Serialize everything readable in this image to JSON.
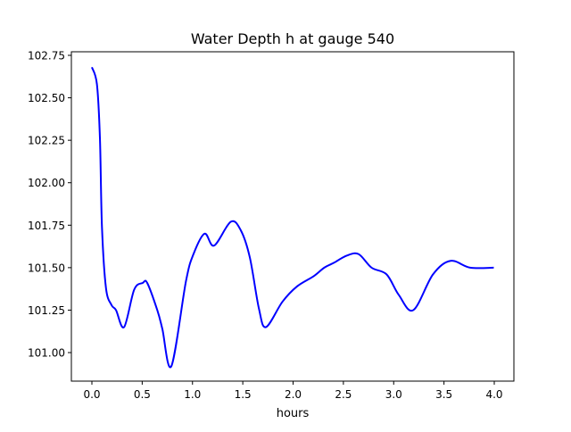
{
  "chart_data": {
    "type": "line",
    "title": "Water Depth h at gauge 540",
    "xlabel": "hours",
    "ylabel": "",
    "xlim": [
      -0.204,
      4.195
    ],
    "ylim": [
      100.832,
      102.771
    ],
    "xticks": [
      0.0,
      0.5,
      1.0,
      1.5,
      2.0,
      2.5,
      3.0,
      3.5,
      4.0
    ],
    "xtick_labels": [
      "0.0",
      "0.5",
      "1.0",
      "1.5",
      "2.0",
      "2.5",
      "3.0",
      "3.5",
      "4.0"
    ],
    "yticks": [
      101.0,
      101.25,
      101.5,
      101.75,
      102.0,
      102.25,
      102.5,
      102.75
    ],
    "ytick_labels": [
      "101.00",
      "101.25",
      "101.50",
      "101.75",
      "102.00",
      "102.25",
      "102.50",
      "102.75"
    ],
    "grid": false,
    "series": [
      {
        "name": "h",
        "color": "#0000ff",
        "x": [
          0,
          0.05,
          0.08,
          0.1,
          0.14,
          0.195,
          0.24,
          0.32,
          0.42,
          0.505,
          0.55,
          0.65,
          0.7,
          0.79,
          0.935,
          1.01,
          1.12,
          1.215,
          1.38,
          1.48,
          1.57,
          1.66,
          1.73,
          1.895,
          2.04,
          2.205,
          2.31,
          2.41,
          2.53,
          2.65,
          2.78,
          2.93,
          3.05,
          3.195,
          3.39,
          3.565,
          3.76,
          3.995
        ],
        "y": [
          102.68,
          102.58,
          102.26,
          101.74,
          101.38,
          101.28,
          101.25,
          101.15,
          101.37,
          101.41,
          101.41,
          101.25,
          101.14,
          100.92,
          101.42,
          101.58,
          101.7,
          101.63,
          101.77,
          101.72,
          101.56,
          101.26,
          101.15,
          101.3,
          101.39,
          101.45,
          101.5,
          101.53,
          101.57,
          101.58,
          101.5,
          101.46,
          101.34,
          101.25,
          101.46,
          101.54,
          101.5,
          101.5
        ]
      }
    ]
  }
}
